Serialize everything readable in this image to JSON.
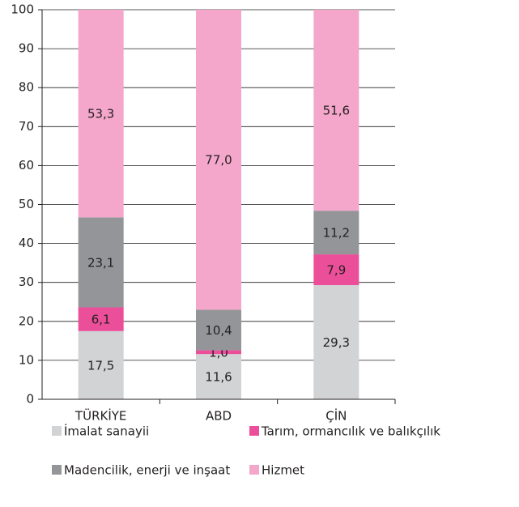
{
  "chart_data": {
    "type": "stacked_bar",
    "categories": [
      "TÜRKİYE",
      "ABD",
      "ÇİN"
    ],
    "series": [
      {
        "name": "İmalat sanayii",
        "color": "#d1d3d4",
        "values": [
          17.5,
          11.6,
          29.3
        ],
        "value_labels": [
          "17,5",
          "11,6",
          "29,3"
        ]
      },
      {
        "name": "Tarım, ormancılık ve balıkçılık",
        "color": "#ec4f9a",
        "values": [
          6.1,
          1.0,
          7.9
        ],
        "value_labels": [
          "6,1",
          "1,0",
          "7,9"
        ]
      },
      {
        "name": "Madencilik, enerji ve inşaat",
        "color": "#939598",
        "values": [
          23.1,
          10.4,
          11.2
        ],
        "value_labels": [
          "23,1",
          "10,4",
          "11,2"
        ]
      },
      {
        "name": "Hizmet",
        "color": "#f4a7cb",
        "values": [
          53.3,
          77.0,
          51.6
        ],
        "value_labels": [
          "53,3",
          "77,0",
          "51,6"
        ]
      }
    ],
    "ylim": [
      0,
      100
    ],
    "yticks": [
      0,
      10,
      20,
      30,
      40,
      50,
      60,
      70,
      80,
      90,
      100
    ],
    "grid": true
  }
}
